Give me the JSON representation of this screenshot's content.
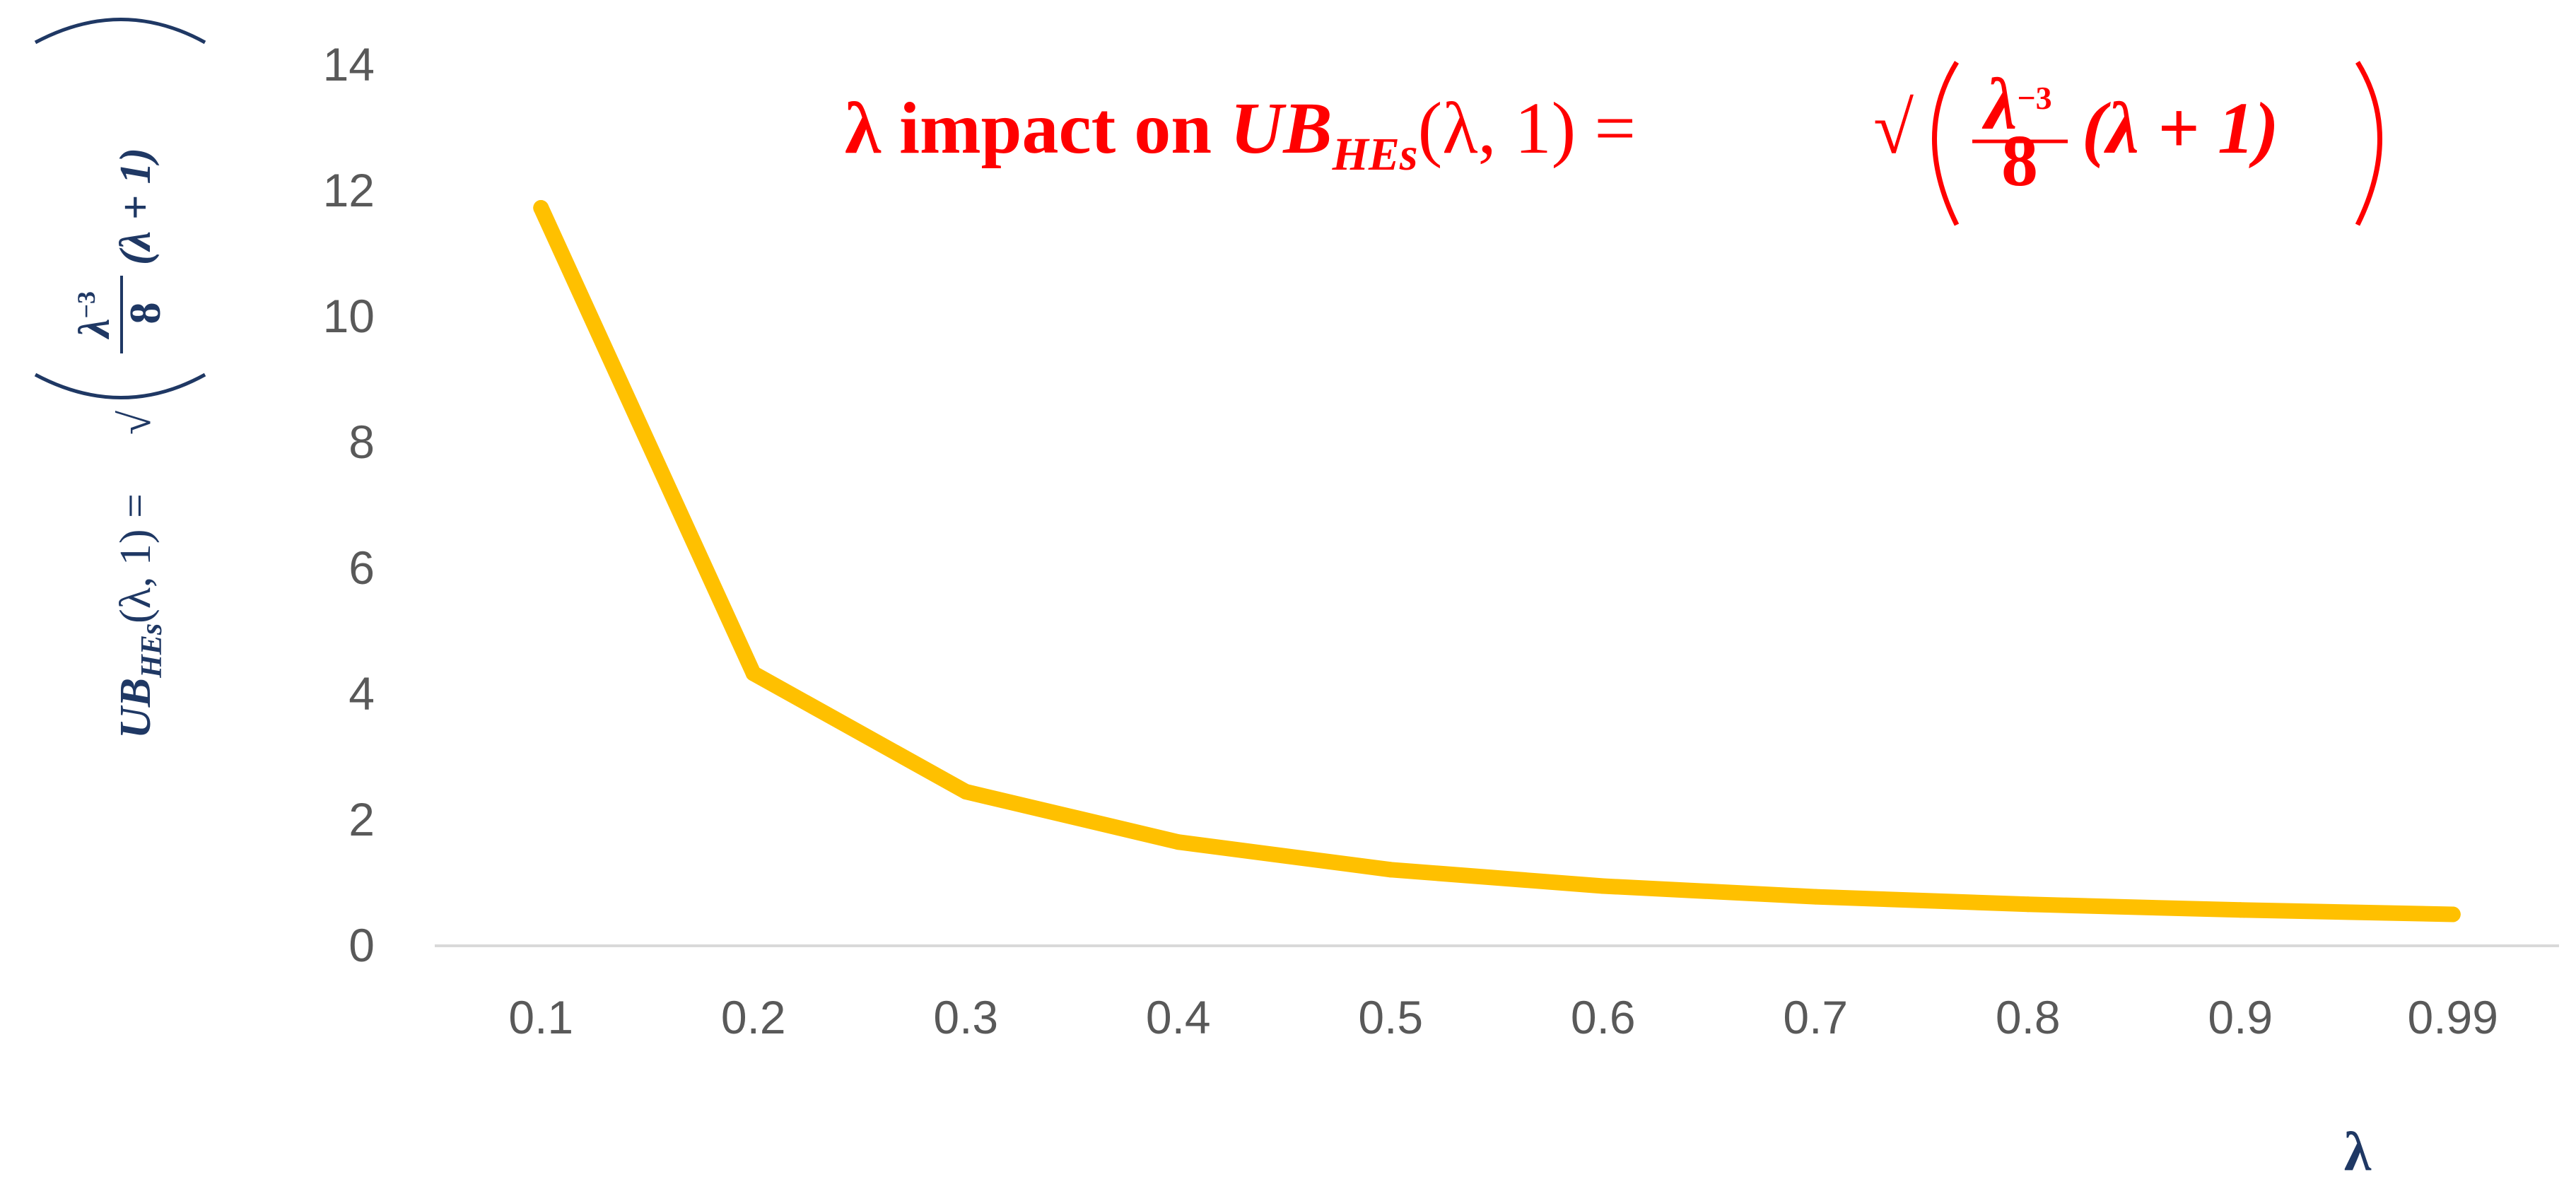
{
  "chart_data": {
    "type": "line",
    "title": "λ impact on UB_HEs(λ, 1) =  √(λ⁻³/8 (λ + 1))",
    "title_parts": {
      "lead": "λ impact on ",
      "ub": "UB",
      "ub_sub": "HEs",
      "args": "(λ, 1) =",
      "root": "√",
      "numerator": "λ",
      "numerator_exp": "−3",
      "denominator": "8",
      "tail": "(λ + 1)"
    },
    "xlabel": "λ",
    "ylabel": "UB_HEs(λ, 1) =  √(λ⁻³/8 (λ + 1))",
    "ylabel_parts": {
      "ub": "UB",
      "ub_sub": "HEs",
      "args": "(λ, 1) =",
      "root": "√",
      "numerator": "λ",
      "numerator_exp": "−3",
      "denominator": "8",
      "tail": "(λ + 1)"
    },
    "categories": [
      "0.1",
      "0.2",
      "0.3",
      "0.4",
      "0.5",
      "0.6",
      "0.7",
      "0.8",
      "0.9",
      "0.99"
    ],
    "series": [
      {
        "values": [
          11.73,
          4.33,
          2.45,
          1.65,
          1.21,
          0.95,
          0.78,
          0.66,
          0.57,
          0.5
        ],
        "color": "#ffc000"
      }
    ],
    "ylim": [
      0,
      14
    ],
    "yticks": [
      "0",
      "2",
      "4",
      "6",
      "8",
      "10",
      "12",
      "14"
    ],
    "grid": false,
    "legend": "none"
  }
}
